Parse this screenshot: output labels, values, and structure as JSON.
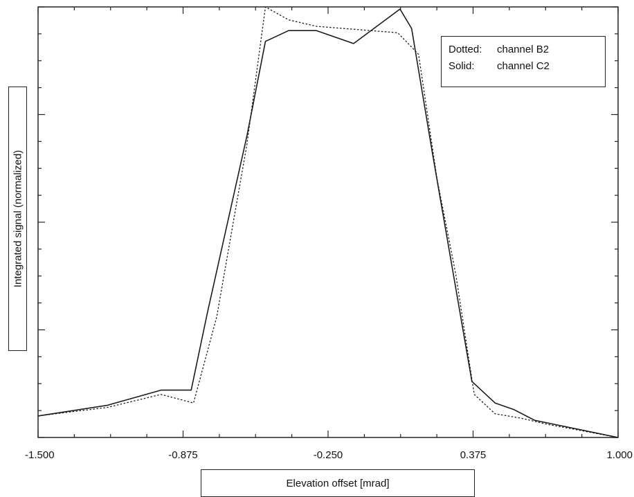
{
  "chart_data": {
    "type": "line",
    "xlabel": "Elevation offset [mrad]",
    "ylabel": "Integrated signal (normalized)",
    "xlim": [
      -1.5,
      1.0
    ],
    "ylim": [
      0,
      1.0
    ],
    "xticks": [
      "-1.500",
      "-0.875",
      "-0.250",
      "0.375",
      "1.000"
    ],
    "xtick_values": [
      -1.5,
      -0.875,
      -0.25,
      0.375,
      1.0
    ],
    "grid": false,
    "legend_position": "top-right",
    "legend": [
      {
        "key": "Dotted:",
        "name": "channel B2"
      },
      {
        "key": "Solid:",
        "name": "channel C2"
      }
    ],
    "series": [
      {
        "name": "channel B2",
        "style": "dotted",
        "x": [
          -1.5,
          -1.2,
          -0.97,
          -0.83,
          -0.73,
          -0.6,
          -0.52,
          -0.42,
          -0.3,
          0.05,
          0.14,
          0.22,
          0.3,
          0.38,
          0.47,
          0.58,
          0.7,
          1.0
        ],
        "y": [
          0.05,
          0.07,
          0.1,
          0.08,
          0.28,
          0.68,
          1.0,
          0.97,
          0.955,
          0.94,
          0.89,
          0.6,
          0.38,
          0.1,
          0.055,
          0.045,
          0.03,
          0.0
        ]
      },
      {
        "name": "channel C2",
        "style": "solid",
        "x": [
          -1.5,
          -1.2,
          -0.97,
          -0.84,
          -0.77,
          -0.6,
          -0.52,
          -0.42,
          -0.3,
          -0.14,
          0.06,
          0.11,
          0.2,
          0.37,
          0.47,
          0.55,
          0.64,
          1.0
        ],
        "y": [
          0.05,
          0.075,
          0.11,
          0.11,
          0.29,
          0.7,
          0.92,
          0.945,
          0.945,
          0.915,
          0.995,
          0.95,
          0.66,
          0.13,
          0.08,
          0.065,
          0.04,
          0.0
        ]
      }
    ]
  }
}
